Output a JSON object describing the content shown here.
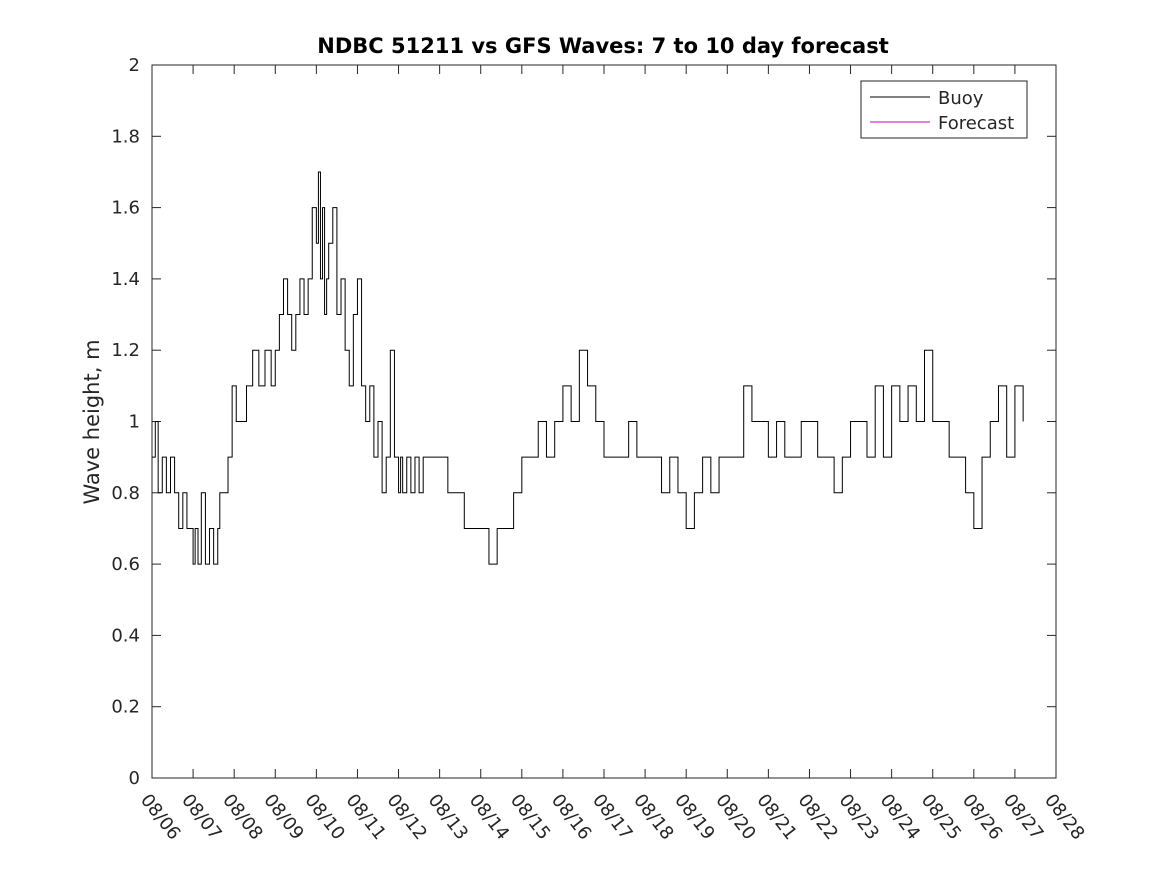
{
  "chart_data": {
    "type": "line",
    "title": "NDBC 51211 vs GFS Waves: 7 to 10 day forecast",
    "xlabel": "",
    "ylabel": "Wave height, m",
    "xlim": [
      0,
      22
    ],
    "ylim": [
      0,
      2
    ],
    "x_ticks": [
      "08/06",
      "08/07",
      "08/08",
      "08/09",
      "08/10",
      "08/11",
      "08/12",
      "08/13",
      "08/14",
      "08/15",
      "08/16",
      "08/17",
      "08/18",
      "08/19",
      "08/20",
      "08/21",
      "08/22",
      "08/23",
      "08/24",
      "08/25",
      "08/26",
      "08/27",
      "08/28"
    ],
    "y_ticks": [
      0,
      0.2,
      0.4,
      0.6,
      0.8,
      1,
      1.2,
      1.4,
      1.6,
      1.8,
      2
    ],
    "y_tick_labels": [
      "0",
      "0.2",
      "0.4",
      "0.6",
      "0.8",
      "1",
      "1.2",
      "1.4",
      "1.6",
      "1.8",
      "2"
    ],
    "legend": {
      "location": "top-right",
      "entries": [
        {
          "label": "Buoy",
          "color": "#000000"
        },
        {
          "label": "Forecast",
          "color": "#c800c8"
        }
      ]
    },
    "series": [
      {
        "name": "Buoy",
        "color": "#000000",
        "x_unit": "days since 08/06 00:00",
        "x": [
          0.0,
          0.08,
          0.15,
          0.25,
          0.35,
          0.45,
          0.55,
          0.65,
          0.75,
          0.85,
          0.95,
          1.0,
          1.05,
          1.12,
          1.2,
          1.3,
          1.4,
          1.5,
          1.6,
          1.65,
          1.75,
          1.85,
          1.95,
          2.05,
          2.15,
          2.3,
          2.45,
          2.6,
          2.75,
          2.9,
          3.0,
          3.1,
          3.2,
          3.3,
          3.4,
          3.5,
          3.6,
          3.7,
          3.8,
          3.9,
          4.0,
          4.05,
          4.1,
          4.15,
          4.2,
          4.25,
          4.3,
          4.4,
          4.5,
          4.6,
          4.7,
          4.8,
          4.9,
          5.0,
          5.1,
          5.2,
          5.3,
          5.4,
          5.5,
          5.6,
          5.7,
          5.8,
          5.9,
          6.0,
          6.05,
          6.1,
          6.2,
          6.3,
          6.4,
          6.5,
          6.6,
          6.8,
          7.0,
          7.2,
          7.4,
          7.6,
          7.8,
          8.0,
          8.2,
          8.4,
          8.6,
          8.8,
          8.9,
          9.0,
          9.2,
          9.4,
          9.6,
          9.8,
          10.0,
          10.2,
          10.4,
          10.6,
          10.8,
          11.0,
          11.2,
          11.4,
          11.6,
          11.8,
          12.0,
          12.2,
          12.4,
          12.6,
          12.8,
          13.0,
          13.2,
          13.4,
          13.6,
          13.8,
          14.0,
          14.2,
          14.4,
          14.6,
          14.8,
          15.0,
          15.2,
          15.4,
          15.6,
          15.8,
          16.0,
          16.2,
          16.4,
          16.6,
          16.8,
          17.0,
          17.2,
          17.4,
          17.6,
          17.8,
          18.0,
          18.2,
          18.4,
          18.6,
          18.8,
          19.0,
          19.2,
          19.4,
          19.6,
          19.8,
          20.0,
          20.2,
          20.4,
          20.6,
          20.8,
          21.0,
          21.2
        ],
        "y": [
          0.9,
          1.0,
          0.8,
          0.9,
          0.8,
          0.9,
          0.8,
          0.7,
          0.8,
          0.7,
          0.7,
          0.6,
          0.7,
          0.6,
          0.8,
          0.6,
          0.7,
          0.6,
          0.7,
          0.8,
          0.8,
          0.9,
          1.1,
          1.0,
          1.0,
          1.1,
          1.2,
          1.1,
          1.2,
          1.1,
          1.2,
          1.3,
          1.4,
          1.3,
          1.2,
          1.3,
          1.4,
          1.3,
          1.4,
          1.6,
          1.5,
          1.7,
          1.4,
          1.6,
          1.3,
          1.4,
          1.5,
          1.6,
          1.3,
          1.4,
          1.2,
          1.1,
          1.3,
          1.4,
          1.1,
          1.0,
          1.1,
          0.9,
          1.0,
          0.8,
          0.9,
          1.2,
          0.9,
          0.8,
          0.9,
          0.8,
          0.9,
          0.8,
          0.9,
          0.8,
          0.9,
          0.9,
          0.9,
          0.8,
          0.8,
          0.7,
          0.7,
          0.7,
          0.6,
          0.7,
          0.7,
          0.8,
          0.8,
          0.9,
          0.9,
          1.0,
          0.9,
          1.0,
          1.1,
          1.0,
          1.2,
          1.1,
          1.0,
          0.9,
          0.9,
          0.9,
          1.0,
          0.9,
          0.9,
          0.9,
          0.8,
          0.9,
          0.8,
          0.7,
          0.8,
          0.9,
          0.8,
          0.9,
          0.9,
          0.9,
          1.1,
          1.0,
          1.0,
          0.9,
          1.0,
          0.9,
          0.9,
          1.0,
          1.0,
          0.9,
          0.9,
          0.8,
          0.9,
          1.0,
          1.0,
          0.9,
          1.1,
          0.9,
          1.1,
          1.0,
          1.1,
          1.0,
          1.2,
          1.0,
          1.0,
          0.9,
          0.9,
          0.8,
          0.7,
          0.9,
          1.0,
          1.1,
          0.9,
          1.1,
          1.0
        ]
      },
      {
        "name": "Forecast",
        "color": "#c800c8",
        "x": [],
        "y": []
      }
    ]
  }
}
